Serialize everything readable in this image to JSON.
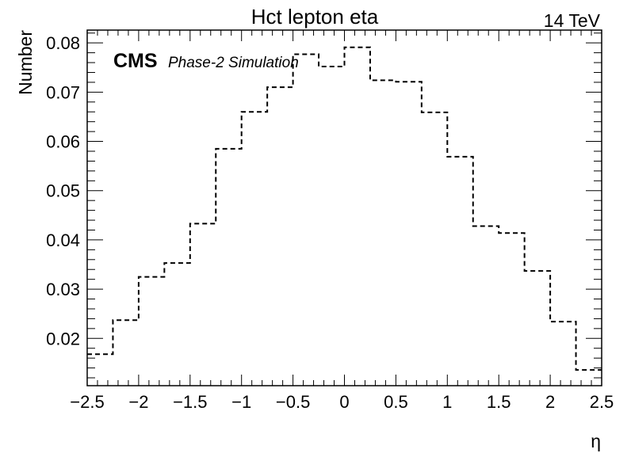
{
  "chart_data": {
    "type": "step-histogram",
    "title": "Hct lepton eta",
    "energy_label": "14 TeV",
    "cms_label": "CMS",
    "cms_sublabel": "Phase-2 Simulation",
    "xlabel": "η",
    "ylabel": "Number",
    "xlim": [
      -2.5,
      2.5
    ],
    "ylim": [
      0.0104,
      0.0826
    ],
    "xticks": [
      -2.5,
      -2,
      -1.5,
      -1,
      -0.5,
      0,
      0.5,
      1,
      1.5,
      2,
      2.5
    ],
    "xtick_labels": [
      "−2.5",
      "−2",
      "−1.5",
      "−1",
      "−0.5",
      "0",
      "0.5",
      "1",
      "1.5",
      "2",
      "2.5"
    ],
    "yticks": [
      0.02,
      0.03,
      0.04,
      0.05,
      0.06,
      0.07,
      0.08
    ],
    "ytick_labels": [
      "0.02",
      "0.03",
      "0.04",
      "0.05",
      "0.06",
      "0.07",
      "0.08"
    ],
    "bin_edges": [
      -2.5,
      -2.25,
      -2.0,
      -1.75,
      -1.5,
      -1.25,
      -1.0,
      -0.75,
      -0.5,
      -0.25,
      0.0,
      0.25,
      0.5,
      0.75,
      1.0,
      1.25,
      1.5,
      1.75,
      2.0,
      2.25,
      2.5
    ],
    "values": [
      0.0168,
      0.0237,
      0.0325,
      0.0353,
      0.0433,
      0.0585,
      0.066,
      0.071,
      0.0777,
      0.0752,
      0.0791,
      0.0724,
      0.0721,
      0.0659,
      0.0569,
      0.0428,
      0.0414,
      0.0337,
      0.0234,
      0.0136
    ],
    "line_style": "dashed",
    "line_color": "#000000",
    "grid": false
  }
}
